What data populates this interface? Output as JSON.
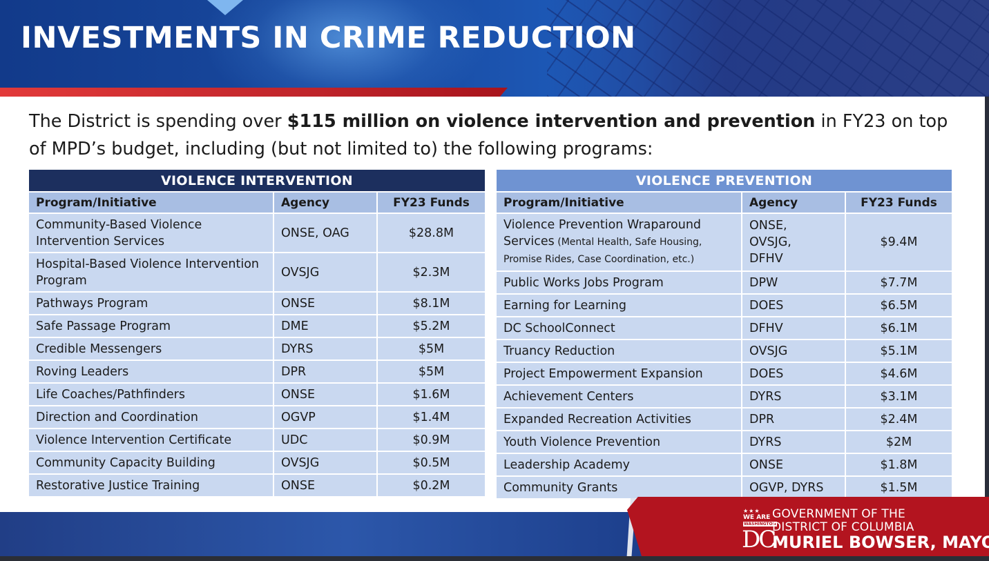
{
  "header": {
    "title": "INVESTMENTS IN CRIME REDUCTION"
  },
  "intro": {
    "before": "The District is spending over ",
    "bold": "$115 million on violence intervention and prevention",
    "after": " in FY23 on top of MPD’s budget, including (but not limited to) the following programs:"
  },
  "intervention": {
    "title": "VIOLENCE INTERVENTION",
    "columns": [
      "Program/Initiative",
      "Agency",
      "FY23 Funds"
    ],
    "rows": [
      {
        "program": "Community-Based Violence Intervention Services",
        "agency": "ONSE, OAG",
        "funds": "$28.8M"
      },
      {
        "program": "Hospital-Based Violence Intervention Program",
        "agency": "OVSJG",
        "funds": "$2.3M"
      },
      {
        "program": "Pathways Program",
        "agency": "ONSE",
        "funds": "$8.1M"
      },
      {
        "program": "Safe Passage Program",
        "agency": "DME",
        "funds": "$5.2M"
      },
      {
        "program": "Credible Messengers",
        "agency": "DYRS",
        "funds": "$5M"
      },
      {
        "program": "Roving Leaders",
        "agency": "DPR",
        "funds": "$5M"
      },
      {
        "program": "Life Coaches/Pathfinders",
        "agency": "ONSE",
        "funds": "$1.6M"
      },
      {
        "program": "Direction and Coordination",
        "agency": "OGVP",
        "funds": "$1.4M"
      },
      {
        "program": "Violence Intervention Certificate",
        "agency": "UDC",
        "funds": "$0.9M"
      },
      {
        "program": "Community Capacity Building",
        "agency": "OVSJG",
        "funds": "$0.5M"
      },
      {
        "program": "Restorative Justice Training",
        "agency": "ONSE",
        "funds": "$0.2M"
      }
    ]
  },
  "prevention": {
    "title": "VIOLENCE PREVENTION",
    "columns": [
      "Program/Initiative",
      "Agency",
      "FY23 Funds"
    ],
    "rows": [
      {
        "program": "Violence Prevention Wraparound Services",
        "note": " (Mental Health, Safe Housing, Promise Rides, Case Coordination, etc.)",
        "agency": "ONSE, OVSJG, DFHV",
        "funds": "$9.4M"
      },
      {
        "program": "Public Works Jobs Program",
        "agency": "DPW",
        "funds": "$7.7M"
      },
      {
        "program": "Earning for Learning",
        "agency": "DOES",
        "funds": "$6.5M"
      },
      {
        "program": "DC SchoolConnect",
        "agency": "DFHV",
        "funds": "$6.1M"
      },
      {
        "program": "Truancy Reduction",
        "agency": "OVSJG",
        "funds": "$5.1M"
      },
      {
        "program": "Project Empowerment Expansion",
        "agency": "DOES",
        "funds": "$4.6M"
      },
      {
        "program": "Achievement Centers",
        "agency": "DYRS",
        "funds": "$3.1M"
      },
      {
        "program": "Expanded Recreation Activities",
        "agency": "DPR",
        "funds": "$2.4M"
      },
      {
        "program": "Youth Violence Prevention",
        "agency": "DYRS",
        "funds": "$2M"
      },
      {
        "program": "Leadership Academy",
        "agency": "ONSE",
        "funds": "$1.8M"
      },
      {
        "program": "Community Grants",
        "agency": "OGVP, DYRS",
        "funds": "$1.5M"
      }
    ]
  },
  "footer": {
    "logo_we_are": "WE ARE",
    "logo_washington": "WASHINGTON",
    "logo_dc": "DC",
    "gov_line1": "GOVERNMENT OF THE",
    "gov_line2": "DISTRICT OF COLUMBIA",
    "mayor": "MURIEL BOWSER, MAYOR"
  },
  "colors": {
    "header_blue": "#1a4fa8",
    "intervention_title_bg": "#1c2f5e",
    "prevention_title_bg": "#6f93d2",
    "column_header_bg": "#a8bee3",
    "row_bg": "#c9d8f0",
    "brand_red": "#b3141f"
  }
}
